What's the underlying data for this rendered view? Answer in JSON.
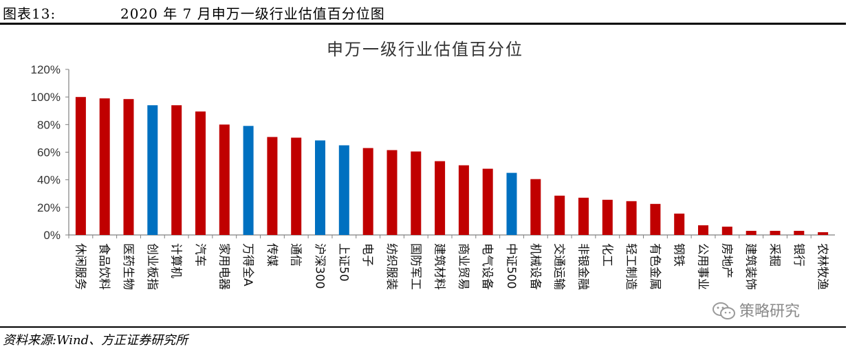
{
  "figure": {
    "label": "图表13:",
    "title": "2020 年 7 月申万一级行业估值百分位图",
    "source": "资料来源:Wind、方正证券研究所"
  },
  "watermark": {
    "text": "策略研究",
    "icon": "wechat-icon"
  },
  "colors": {
    "industry": "#C00000",
    "index": "#0070C0",
    "axis": "#808080",
    "text": "#333333"
  },
  "chart_data": {
    "type": "bar",
    "title": "申万一级行业估值百分位",
    "xlabel": "",
    "ylabel": "",
    "ylim": [
      0,
      120
    ],
    "yticks": [
      "120%",
      "100%",
      "80%",
      "60%",
      "40%",
      "20%",
      "0%"
    ],
    "grid": false,
    "legend": "none",
    "categories": [
      "休闲服务",
      "食品饮料",
      "医药生物",
      "创业板指",
      "计算机",
      "汽车",
      "家用电器",
      "万得全A",
      "传媒",
      "通信",
      "沪深300",
      "上证50",
      "电子",
      "纺织服装",
      "国防军工",
      "建筑材料",
      "商业贸易",
      "电气设备",
      "中证500",
      "机械设备",
      "交通运输",
      "非银金融",
      "化工",
      "轻工制造",
      "有色金属",
      "钢铁",
      "公用事业",
      "房地产",
      "建筑装饰",
      "采掘",
      "银行",
      "农林牧渔"
    ],
    "values": [
      100,
      99,
      98.5,
      94,
      94,
      89.5,
      80,
      79,
      71,
      70.5,
      68.5,
      65,
      63,
      61.5,
      60.5,
      53.5,
      50.5,
      48,
      45,
      40.5,
      28.5,
      27,
      25.5,
      24.5,
      22.5,
      15.5,
      7,
      6,
      3,
      3,
      3,
      2
    ],
    "bar_kind": [
      "industry",
      "industry",
      "industry",
      "index",
      "industry",
      "industry",
      "industry",
      "index",
      "industry",
      "industry",
      "index",
      "index",
      "industry",
      "industry",
      "industry",
      "industry",
      "industry",
      "industry",
      "index",
      "industry",
      "industry",
      "industry",
      "industry",
      "industry",
      "industry",
      "industry",
      "industry",
      "industry",
      "industry",
      "industry",
      "industry",
      "industry"
    ]
  }
}
